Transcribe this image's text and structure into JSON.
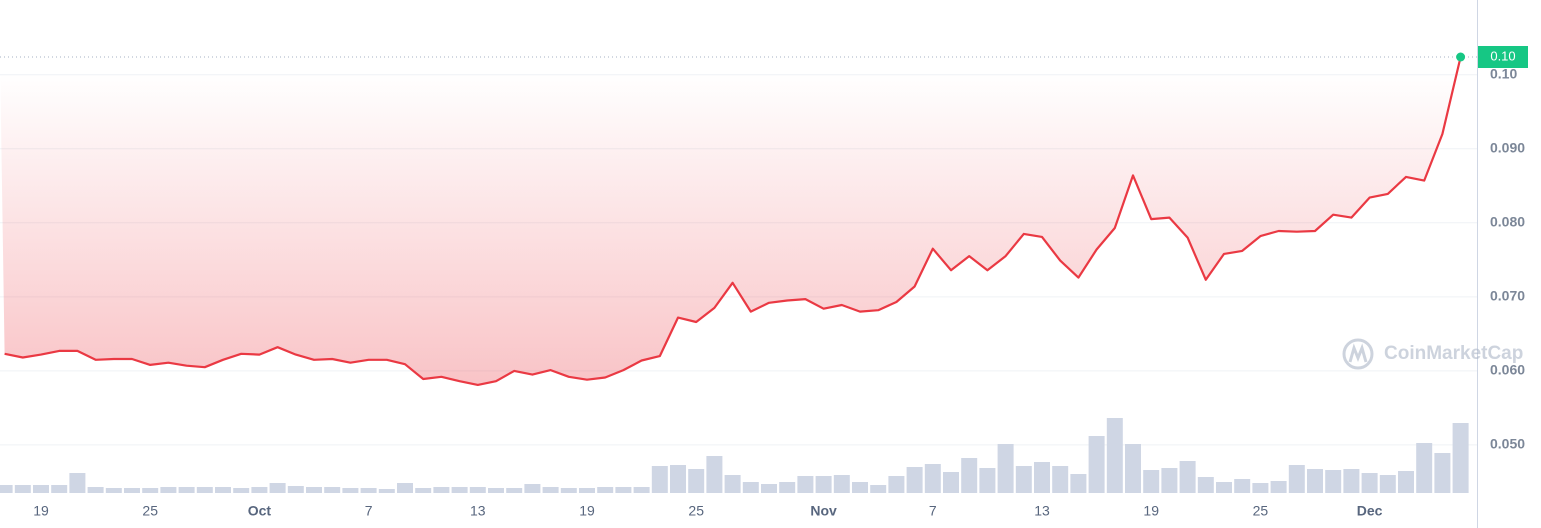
{
  "chart_data": {
    "type": "line",
    "categories": [
      null,
      null,
      "19",
      null,
      null,
      null,
      null,
      null,
      "25",
      null,
      null,
      null,
      null,
      null,
      "Oct",
      null,
      null,
      null,
      null,
      null,
      "7",
      null,
      null,
      null,
      null,
      null,
      "13",
      null,
      null,
      null,
      null,
      null,
      "19",
      null,
      null,
      null,
      null,
      null,
      "25",
      null,
      null,
      null,
      null,
      null,
      null,
      "Nov",
      null,
      null,
      null,
      null,
      null,
      "7",
      null,
      null,
      null,
      null,
      null,
      "13",
      null,
      null,
      null,
      null,
      null,
      "19",
      null,
      null,
      null,
      null,
      null,
      "25",
      null,
      null,
      null,
      null,
      null,
      "Dec",
      null,
      null,
      null,
      null,
      null
    ],
    "values": [
      0.0623,
      0.0618,
      0.0622,
      0.0627,
      0.0627,
      0.0615,
      0.0616,
      0.0616,
      0.0608,
      0.0611,
      0.0607,
      0.0605,
      0.0615,
      0.0623,
      0.0622,
      0.0632,
      0.0622,
      0.0615,
      0.0616,
      0.0611,
      0.0615,
      0.0615,
      0.0609,
      0.0589,
      0.0592,
      0.0586,
      0.0581,
      0.0586,
      0.06,
      0.0595,
      0.0601,
      0.0592,
      0.0588,
      0.0591,
      0.0601,
      0.0614,
      0.062,
      0.0672,
      0.0666,
      0.0685,
      0.0719,
      0.068,
      0.0692,
      0.0695,
      0.0697,
      0.0684,
      0.0689,
      0.068,
      0.0682,
      0.0693,
      0.0714,
      0.0765,
      0.0736,
      0.0755,
      0.0736,
      0.0755,
      0.0785,
      0.0781,
      0.0749,
      0.0726,
      0.0764,
      0.0793,
      0.0864,
      0.0805,
      0.0807,
      0.078,
      0.0723,
      0.0758,
      0.0762,
      0.0782,
      0.0789,
      0.0788,
      0.0789,
      0.0811,
      0.0807,
      0.0834,
      0.0839,
      0.0862,
      0.0857,
      0.092,
      0.1024
    ],
    "color": "#ea3943",
    "volume": [
      8,
      8,
      8,
      8,
      20,
      6,
      5,
      5,
      5,
      6,
      6,
      6,
      6,
      5,
      6,
      10,
      7,
      6,
      6,
      5,
      5,
      4,
      10,
      5,
      6,
      6,
      6,
      5,
      5,
      9,
      6,
      5,
      5,
      6,
      6,
      6,
      27,
      28,
      24,
      37,
      18,
      11,
      9,
      11,
      17,
      17,
      18,
      11,
      8,
      17,
      26,
      29,
      21,
      35,
      25,
      49,
      27,
      31,
      27,
      19,
      57,
      75,
      49,
      23,
      25,
      32,
      16,
      11,
      14,
      10,
      12,
      28,
      24,
      23,
      24,
      20,
      18,
      22,
      50,
      40,
      70
    ],
    "volume_color": "#cfd6e4",
    "ylim": [
      0.0435,
      0.1101
    ],
    "yticks": [
      {
        "value": 0.1,
        "label": "0.10"
      },
      {
        "value": 0.09,
        "label": "0.090"
      },
      {
        "value": 0.08,
        "label": "0.080"
      },
      {
        "value": 0.07,
        "label": "0.070"
      },
      {
        "value": 0.06,
        "label": "0.060"
      },
      {
        "value": 0.05,
        "label": "0.050"
      }
    ],
    "grid": true,
    "last_label": "0.10",
    "last_color": "#16c784",
    "watermark": "CoinMarketCap"
  }
}
